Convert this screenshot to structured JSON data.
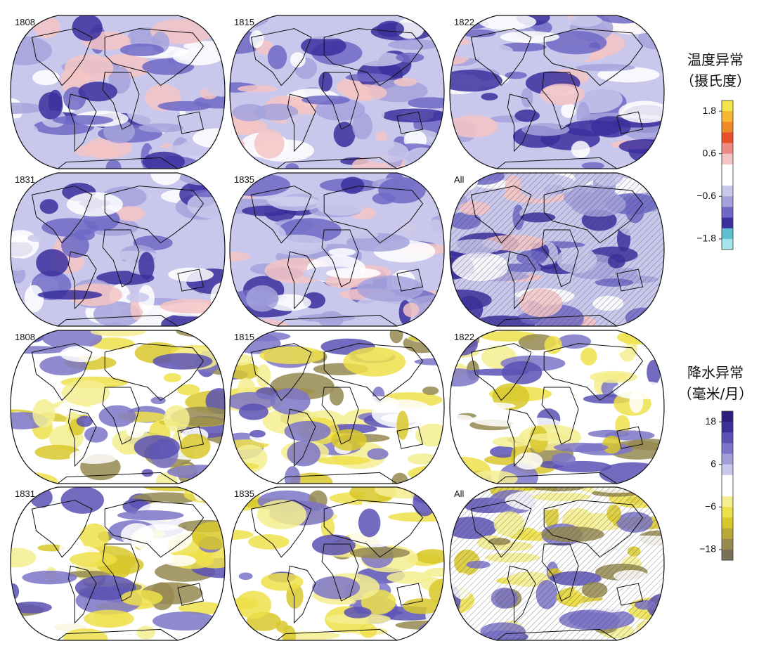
{
  "temperature": {
    "panels": [
      "1808",
      "1815",
      "1822",
      "1831",
      "1835",
      "All"
    ],
    "title": [
      "温度异常",
      "（摄氏度）"
    ],
    "ticks": [
      1.8,
      0.6,
      {
        "value": -0.6,
        "label": "−0.6"
      },
      {
        "value": -1.8,
        "label": "−1.8"
      }
    ],
    "lim": [
      2.1,
      -2.1
    ],
    "colors": [
      "#f6e54a",
      "#f5b830",
      "#ef8a2a",
      "#e8502c",
      "#ee8a84",
      "#f4c4c4",
      "#ffffff",
      "#ffffff",
      "#c9c8ec",
      "#a4a2dc",
      "#6e68c6",
      "#3b2f9e",
      "#5dbfd0",
      "#a4e6ec"
    ]
  },
  "precipitation": {
    "panels": [
      "1808",
      "1815",
      "1822",
      "1831",
      "1835",
      "All"
    ],
    "title": [
      "降水异常",
      "（毫米/月）"
    ],
    "ticks": [
      18,
      6,
      {
        "value": -6,
        "label": "−6"
      },
      {
        "value": -18,
        "label": "−18"
      }
    ],
    "lim": [
      21,
      -21
    ],
    "colors": [
      "#2e1f7e",
      "#3c2f96",
      "#5a51b4",
      "#7b74c8",
      "#a29ed8",
      "#c9c7ea",
      "#ffffff",
      "#ffffff",
      "#f5ee90",
      "#eee04a",
      "#d8c82a",
      "#b8a838",
      "#958a50",
      "#7a7058"
    ]
  }
}
